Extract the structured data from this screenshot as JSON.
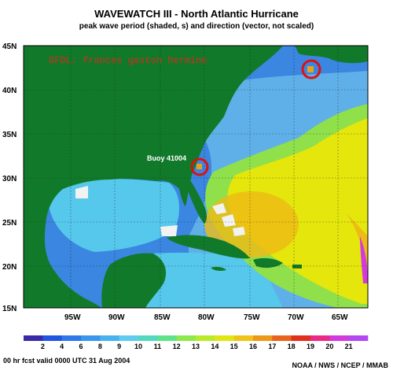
{
  "header": {
    "title": "WAVEWATCH III - North Atlantic Hurricane",
    "subtitle": "peak wave period (shaded, s) and direction (vector, not scaled)"
  },
  "map": {
    "watermark": "GFDL: frances gaston hermine",
    "lat_labels": [
      "45N",
      "40N",
      "35N",
      "30N",
      "25N",
      "20N",
      "15N"
    ],
    "lon_labels": [
      "95W",
      "90W",
      "85W",
      "80W",
      "75W",
      "70W",
      "65W"
    ],
    "buoy_label": "Buoy 41004",
    "colors": {
      "land": "#117a2a",
      "ocean_blue": "#3a86e0",
      "ocean_light": "#5fb0e8",
      "gulf_cyan": "#55c8ec",
      "band_green": "#8fe04a",
      "band_yellow": "#e4e60c",
      "band_orange": "#eeba15",
      "marker": "#e8a020",
      "circle": "#dd1111",
      "arrow": "#d03a3a"
    }
  },
  "colorbar": {
    "ticks": [
      "2",
      "4",
      "6",
      "8",
      "9",
      "10",
      "11",
      "12",
      "13",
      "14",
      "15",
      "16",
      "17",
      "18",
      "19",
      "20",
      "21"
    ],
    "colors": [
      "#3a2aa8",
      "#2255e0",
      "#2e78ea",
      "#3a96ec",
      "#48b2ee",
      "#5fcced",
      "#52d8c0",
      "#5ee28a",
      "#8de84c",
      "#b8ea2a",
      "#e0e614",
      "#eec416",
      "#ee9818",
      "#e8641c",
      "#e0301e",
      "#ea2a86",
      "#d23ade",
      "#b248f0"
    ]
  },
  "footer": {
    "left": "00 hr fcst valid 0000 UTC  31 Aug 2004",
    "right": "NOAA / NWS / NCEP / MMAB"
  }
}
